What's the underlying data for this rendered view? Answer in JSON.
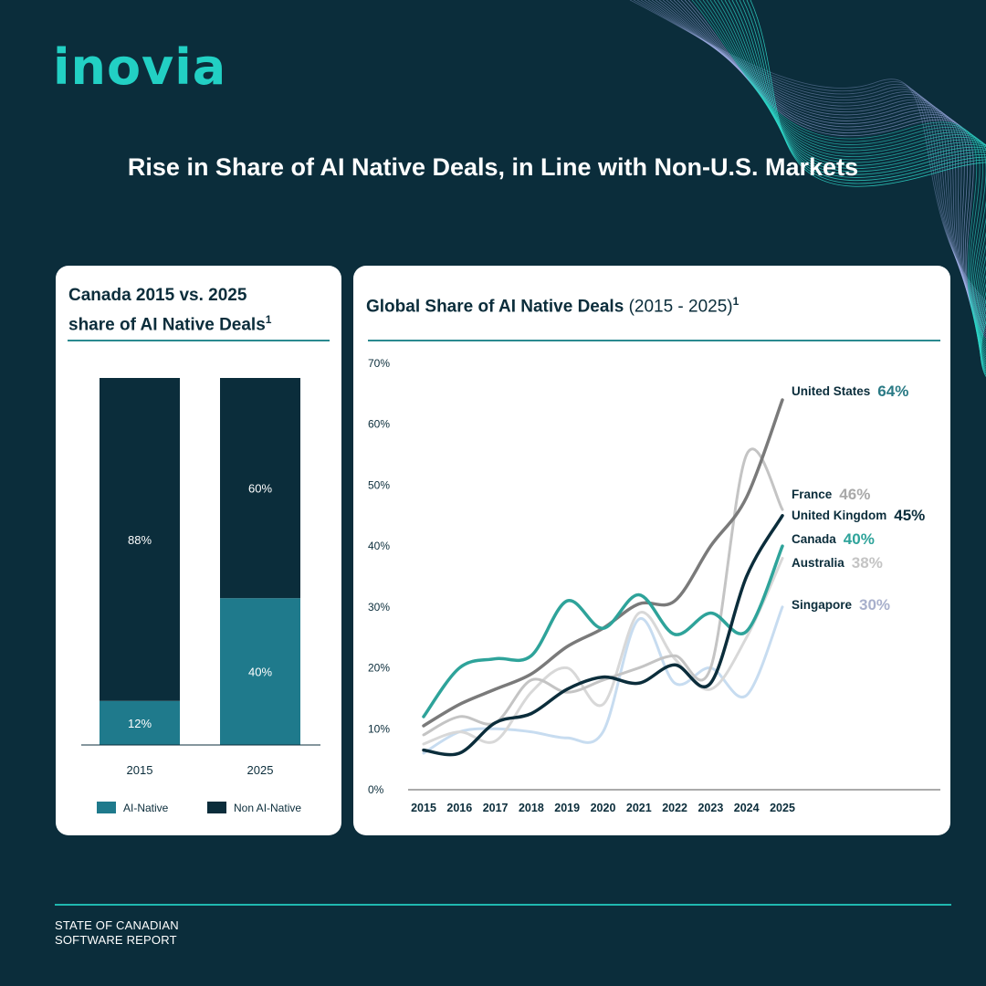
{
  "brand": {
    "logo_text": "inovia"
  },
  "title": "Rise in Share of AI Native Deals, in Line with Non-U.S. Markets",
  "footer": {
    "line1": "STATE OF CANADIAN",
    "line2": "SOFTWARE REPORT"
  },
  "colors": {
    "background": "#0b2d3b",
    "brand_teal": "#22d0c4",
    "ai_native": "#1f7a8c",
    "non_ai_native": "#0b2d3b",
    "united_states": "#7a7a7a",
    "france": "#c4c4c4",
    "united_kingdom": "#0b2d3b",
    "canada": "#2ea39a",
    "australia": "#d8d8d8",
    "singapore": "#c7dcf0"
  },
  "left_chart": {
    "title_line1": "Canada 2015 vs. 2025",
    "title_line2": "share of AI Native Deals",
    "title_sup": "1"
  },
  "right_chart": {
    "title_main": "Global Share of AI Native Deals",
    "title_range": "(2015 - 2025)",
    "title_sup": "1"
  },
  "chart_data": [
    {
      "type": "bar",
      "stacked": true,
      "categories": [
        "2015",
        "2025"
      ],
      "series": [
        {
          "name": "AI-Native",
          "values": [
            12,
            40
          ],
          "labels": [
            "12%",
            "40%"
          ],
          "color": "#1f7a8c"
        },
        {
          "name": "Non AI-Native",
          "values": [
            88,
            60
          ],
          "labels": [
            "88%",
            "60%"
          ],
          "color": "#0b2d3b"
        }
      ],
      "ylim": [
        0,
        100
      ],
      "legend": "bottom"
    },
    {
      "type": "line",
      "x": [
        "2015",
        "2016",
        "2017",
        "2018",
        "2019",
        "2020",
        "2021",
        "2022",
        "2023",
        "2024",
        "2025"
      ],
      "ylim": [
        0,
        70
      ],
      "yticks": [
        "0%",
        "10%",
        "20%",
        "30%",
        "40%",
        "50%",
        "60%",
        "70%"
      ],
      "legend": "right",
      "series": [
        {
          "name": "United States",
          "label": "64%",
          "color": "#7a7a7a",
          "values": [
            10.5,
            14,
            16.5,
            19,
            23.5,
            26.5,
            30.5,
            31,
            40,
            48,
            64
          ]
        },
        {
          "name": "France",
          "label": "46%",
          "color": "#c4c4c4",
          "values": [
            9,
            12,
            11,
            18,
            16,
            18,
            20,
            22,
            20,
            55,
            46
          ]
        },
        {
          "name": "United Kingdom",
          "label": "45%",
          "color": "#0b2d3b",
          "values": [
            6.5,
            6,
            11,
            12.5,
            16.5,
            18.5,
            17.5,
            20.5,
            17.5,
            35,
            45
          ]
        },
        {
          "name": "Canada",
          "label": "40%",
          "color": "#2ea39a",
          "values": [
            12,
            20,
            21.5,
            22,
            31,
            26.5,
            32,
            25.5,
            29,
            26,
            40
          ]
        },
        {
          "name": "Australia",
          "label": "38%",
          "color": "#d8d8d8",
          "values": [
            7.5,
            9.5,
            8,
            16,
            20,
            14,
            29,
            21.5,
            16.5,
            25,
            38
          ]
        },
        {
          "name": "Singapore",
          "label": "30%",
          "color": "#c7dcf0",
          "values": [
            6,
            9.5,
            10,
            9.5,
            8.5,
            9.5,
            28,
            17.5,
            20,
            15.5,
            30
          ]
        }
      ]
    }
  ]
}
